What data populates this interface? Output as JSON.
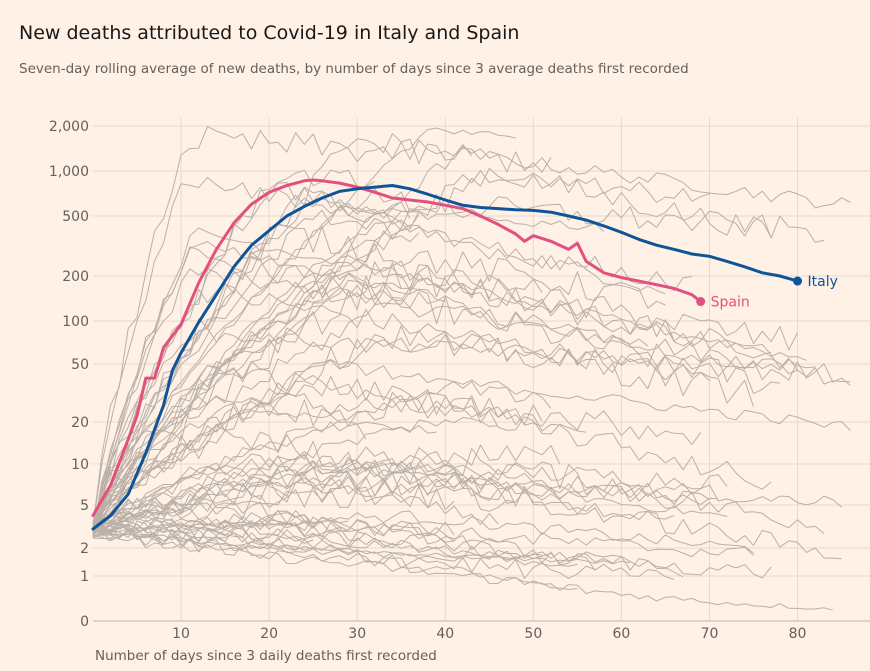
{
  "chart_data": {
    "type": "line",
    "title": "New deaths attributed to Covid-19 in Italy and Spain",
    "subtitle": "Seven-day rolling average of new deaths, by number of days since 3 average deaths first recorded",
    "xlabel": "Number of days since 3 daily deaths first recorded",
    "ylabel": "",
    "yscale": "log",
    "xlim": [
      0,
      88
    ],
    "x_ticks": [
      10,
      20,
      30,
      40,
      50,
      60,
      70,
      80
    ],
    "y_ticks": [
      0,
      1,
      2,
      5,
      10,
      20,
      50,
      100,
      200,
      500,
      1000,
      2000
    ],
    "y_tick_labels": [
      "0",
      "1",
      "2",
      "5",
      "10",
      "20",
      "50",
      "100",
      "200",
      "500",
      "1,000",
      "2,000"
    ],
    "grid": true,
    "series": [
      {
        "name": "Italy",
        "color": "#0f5499",
        "x": [
          0,
          2,
          4,
          6,
          8,
          9,
          10,
          12,
          14,
          16,
          18,
          20,
          22,
          24,
          26,
          28,
          30,
          32,
          34,
          36,
          38,
          40,
          42,
          44,
          46,
          48,
          50,
          52,
          54,
          56,
          58,
          60,
          62,
          64,
          66,
          68,
          70,
          72,
          74,
          76,
          78,
          80
        ],
        "y": [
          3,
          4,
          6,
          12,
          26,
          45,
          60,
          98,
          150,
          230,
          320,
          400,
          500,
          580,
          660,
          730,
          760,
          780,
          800,
          760,
          700,
          640,
          590,
          570,
          560,
          550,
          545,
          530,
          500,
          470,
          430,
          390,
          350,
          320,
          300,
          280,
          270,
          250,
          230,
          210,
          200,
          185
        ]
      },
      {
        "name": "Spain",
        "color": "#e3507e",
        "x": [
          0,
          2,
          4,
          5,
          6,
          7,
          8,
          10,
          12,
          14,
          16,
          18,
          20,
          22,
          24,
          25,
          26,
          28,
          30,
          32,
          34,
          36,
          38,
          40,
          42,
          44,
          46,
          48,
          49,
          50,
          52,
          54,
          55,
          56,
          58,
          60,
          62,
          64,
          66,
          68,
          69
        ],
        "y": [
          4,
          7,
          15,
          22,
          40,
          40,
          65,
          95,
          180,
          300,
          450,
          600,
          720,
          800,
          860,
          870,
          860,
          830,
          780,
          720,
          660,
          640,
          620,
          590,
          560,
          500,
          440,
          380,
          340,
          370,
          340,
          300,
          330,
          250,
          210,
          195,
          185,
          175,
          165,
          150,
          135
        ]
      }
    ],
    "background_series_count": 70
  },
  "labels": {
    "italy": "Italy",
    "spain": "Spain"
  },
  "colors": {
    "background": "#fff1e6",
    "grid": "#e6d9ce",
    "other_countries": "#bab0a8",
    "italy": "#0f5499",
    "spain": "#e3507e"
  }
}
